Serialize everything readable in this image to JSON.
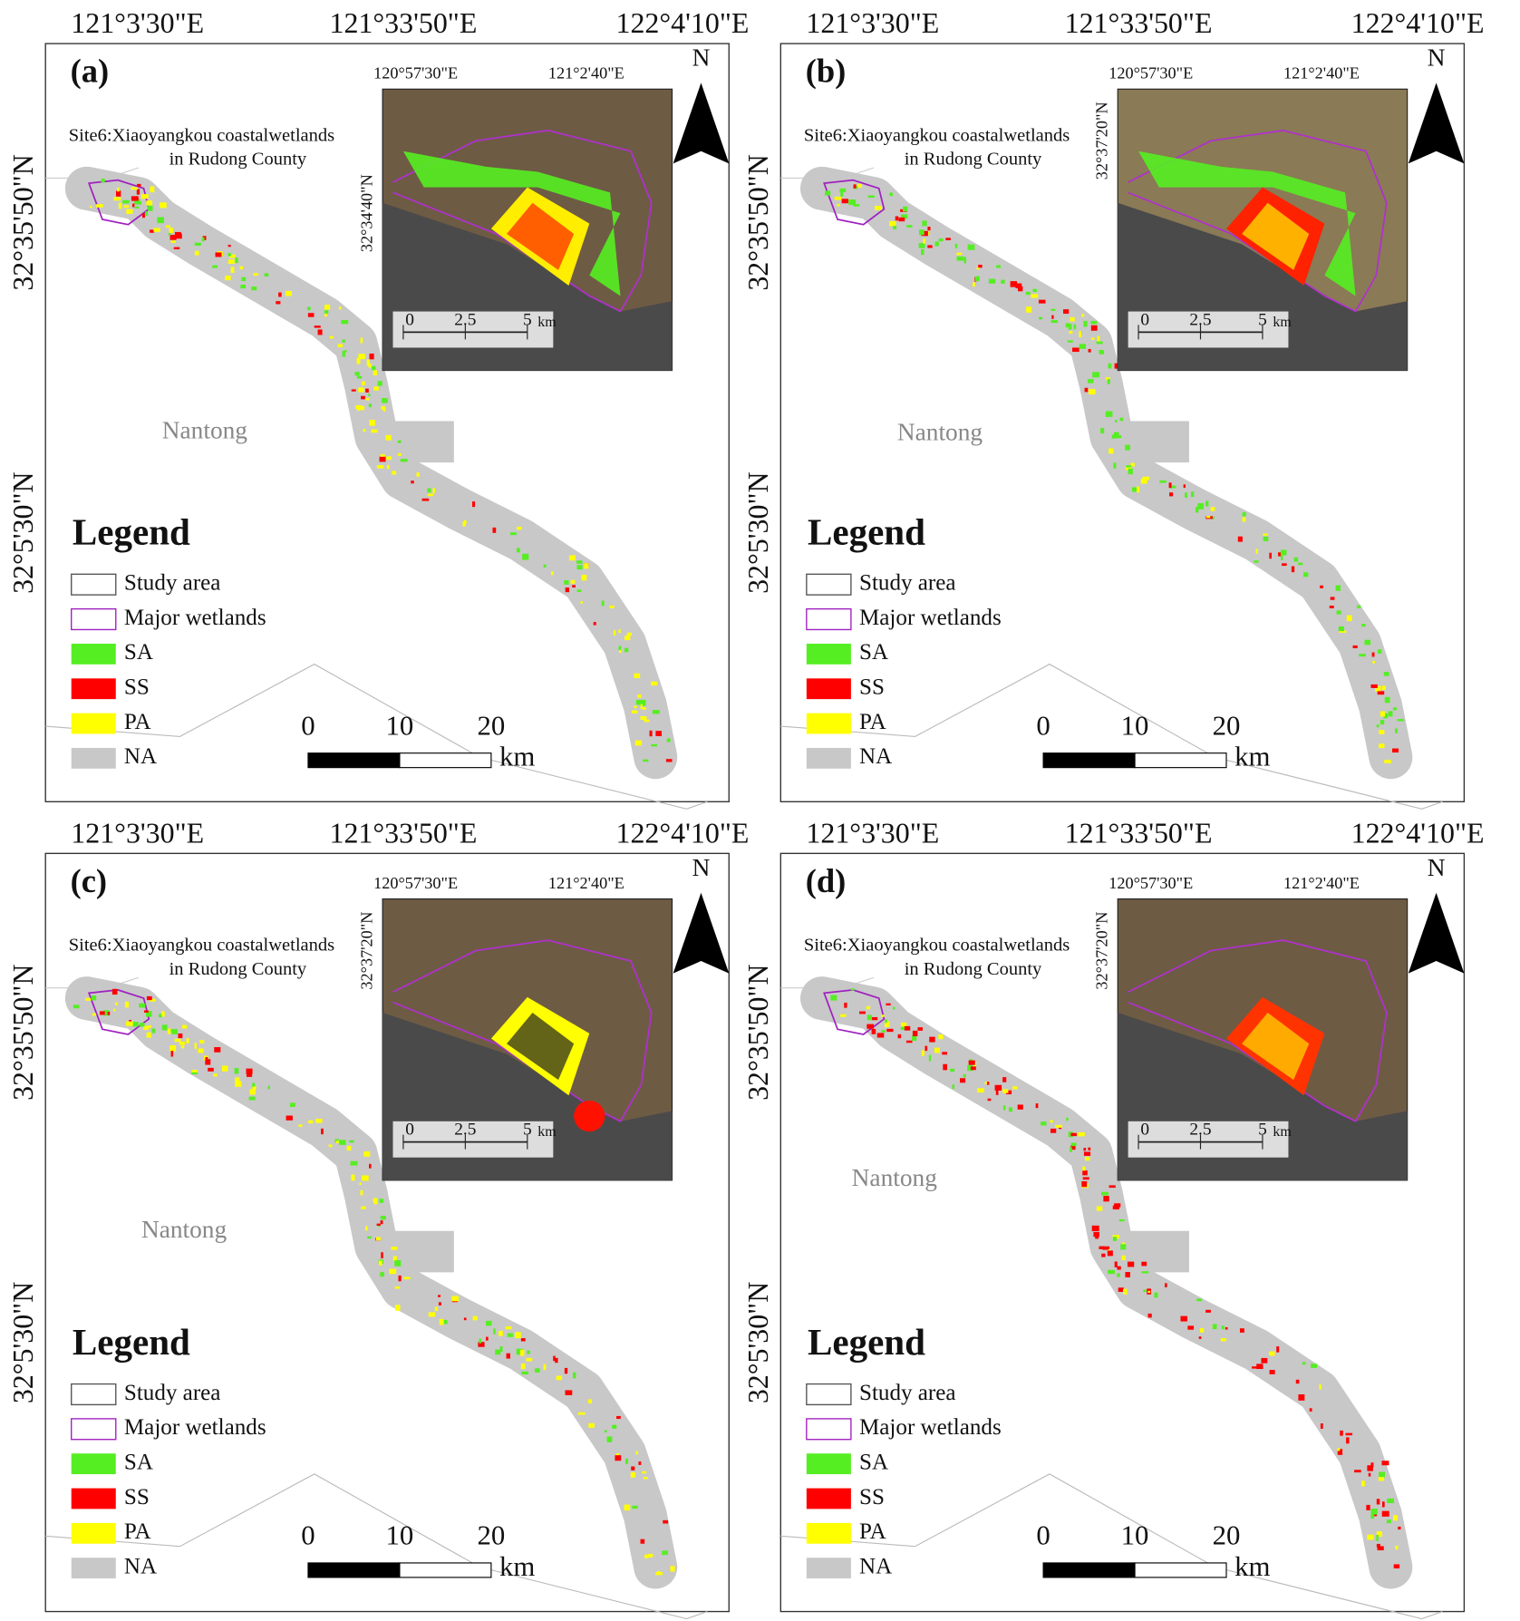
{
  "panels": [
    {
      "label": "(a)",
      "lon_labels": [
        "121°3'30\"E",
        "121°33'50\"E",
        "122°4'10\"E"
      ],
      "lat_labels": [
        "32°35'50\"N",
        "32°5'30\"N"
      ],
      "site_title": [
        "Site6:Xiaoyangkou coastalwetlands",
        "in Rudong County"
      ],
      "place": "Nantong",
      "inset": {
        "lon_labels": [
          "120°57'30\"E",
          "121°2'40\"E"
        ],
        "lat_label": "32°34'40\"N",
        "scale": [
          0,
          2.5,
          5
        ],
        "unit": "km"
      },
      "north": "N"
    },
    {
      "label": "(b)",
      "lon_labels": [
        "121°3'30\"E",
        "121°33'50\"E",
        "122°4'10\"E"
      ],
      "lat_labels": [
        "32°35'50\"N",
        "32°5'30\"N"
      ],
      "site_title": [
        "Site6:Xiaoyangkou coastalwetlands",
        "in Rudong County"
      ],
      "place": "Nantong",
      "inset": {
        "lon_labels": [
          "120°57'30\"E",
          "121°2'40\"E"
        ],
        "lat_label": "32°37'20\"N",
        "scale": [
          0,
          2.5,
          5
        ],
        "unit": "km"
      },
      "north": "N"
    },
    {
      "label": "(c)",
      "lon_labels": [
        "121°3'30\"E",
        "121°33'50\"E",
        "122°4'10\"E"
      ],
      "lat_labels": [
        "32°35'50\"N",
        "32°5'30\"N"
      ],
      "site_title": [
        "Site6:Xiaoyangkou coastalwetlands",
        "in Rudong County"
      ],
      "place": "Nantong",
      "inset": {
        "lon_labels": [
          "120°57'30\"E",
          "121°2'40\"E"
        ],
        "lat_label": "32°37'20\"N",
        "scale": [
          0,
          2.5,
          5
        ],
        "unit": "km"
      },
      "north": "N"
    },
    {
      "label": "(d)",
      "lon_labels": [
        "121°3'30\"E",
        "121°33'50\"E",
        "122°4'10\"E"
      ],
      "lat_labels": [
        "32°35'50\"N",
        "32°5'30\"N"
      ],
      "site_title": [
        "Site6:Xiaoyangkou coastalwetlands",
        "in Rudong County"
      ],
      "place": "Nantong",
      "inset": {
        "lon_labels": [
          "120°57'30\"E",
          "121°2'40\"E"
        ],
        "lat_label": "32°37'20\"N",
        "scale": [
          0,
          2.5,
          5
        ],
        "unit": "km"
      },
      "north": "N"
    }
  ],
  "legend": {
    "title": "Legend",
    "items": [
      {
        "label": "Study area",
        "outline": "#555555"
      },
      {
        "label": "Major wetlands",
        "outline": "#a020c0"
      },
      {
        "label": "SA",
        "color": "#55ee22"
      },
      {
        "label": "SS",
        "color": "#ff0000"
      },
      {
        "label": "PA",
        "color": "#ffff00"
      },
      {
        "label": "NA",
        "color": "#c8c8c8"
      }
    ]
  },
  "scale_bar": {
    "ticks": [
      0,
      10,
      20
    ],
    "unit": "km"
  }
}
